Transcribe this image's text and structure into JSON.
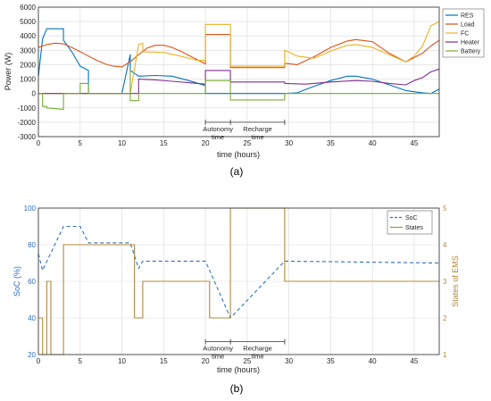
{
  "captions": {
    "a": "(a)",
    "b": "(b)"
  },
  "colors": {
    "res": "#0072BD",
    "load": "#D95319",
    "fc": "#EDB120",
    "heater": "#7E2F8E",
    "battery": "#77AC30",
    "soc": "#2E6FBF",
    "states": "#B08A3A",
    "grid": "#d9d9d9",
    "axis": "#262626"
  },
  "chart_data": [
    {
      "type": "line",
      "xlabel": "time (hours)",
      "ylabel": "Power (W)",
      "xlim": [
        0,
        48
      ],
      "ylim": [
        -3000,
        6000
      ],
      "xticks": [
        0,
        5,
        10,
        15,
        20,
        25,
        30,
        35,
        40,
        45
      ],
      "yticks": [
        -3000,
        -2000,
        -1000,
        0,
        1000,
        2000,
        3000,
        4000,
        5000,
        6000
      ],
      "grid": true,
      "legend_position": "top-right",
      "annotations": [
        {
          "text": "Autonomy\ntime",
          "x_from": 20,
          "x_to": 23
        },
        {
          "text": "Recharge\ntime",
          "x_from": 23,
          "x_to": 29.5
        }
      ],
      "series": [
        {
          "name": "RES",
          "color": "#0072BD",
          "x": [
            0,
            0.5,
            1,
            3,
            3,
            4,
            5,
            6,
            6,
            8,
            10,
            11,
            11,
            12,
            14,
            16,
            18,
            20,
            20,
            23,
            23,
            29.5,
            29.5,
            31,
            33,
            35,
            37,
            38,
            40,
            42,
            44,
            46,
            47,
            48
          ],
          "y": [
            1200,
            3800,
            4500,
            4500,
            3700,
            2900,
            1900,
            1600,
            0,
            0,
            0,
            2700,
            1600,
            1200,
            1250,
            1200,
            900,
            550,
            0,
            0,
            0,
            0,
            0,
            50,
            500,
            900,
            1200,
            1200,
            1000,
            600,
            200,
            50,
            0,
            300
          ]
        },
        {
          "name": "Load",
          "color": "#D95319",
          "x": [
            0,
            1,
            2,
            3,
            4,
            5,
            6,
            7,
            8,
            9,
            10,
            11,
            12,
            13,
            14,
            15,
            16,
            17,
            18,
            19,
            20,
            20,
            23,
            23,
            29.5,
            29.5,
            31,
            33,
            35,
            37,
            38,
            40,
            42,
            44,
            46,
            47,
            48
          ],
          "y": [
            3200,
            3400,
            3500,
            3450,
            3200,
            2900,
            2600,
            2300,
            2050,
            1900,
            1850,
            2200,
            2700,
            3150,
            3350,
            3350,
            3200,
            2950,
            2650,
            2350,
            2050,
            4100,
            4100,
            1800,
            1800,
            2100,
            2000,
            2550,
            3200,
            3650,
            3750,
            3600,
            2800,
            2200,
            2800,
            3300,
            3700
          ]
        },
        {
          "name": "FC",
          "color": "#EDB120",
          "x": [
            0,
            3,
            3,
            6,
            6,
            11,
            11,
            12,
            12.5,
            12.5,
            15,
            17,
            19,
            20,
            20,
            23,
            23,
            29.5,
            29.5,
            31,
            33,
            35,
            37,
            38,
            40,
            42,
            44,
            45,
            46,
            47,
            48
          ],
          "y": [
            0,
            0,
            0,
            0,
            0,
            0,
            0,
            3400,
            3500,
            2900,
            2850,
            2600,
            2300,
            2300,
            4800,
            4800,
            1900,
            1900,
            3000,
            2600,
            2450,
            2950,
            3350,
            3400,
            3200,
            2700,
            2200,
            2600,
            3300,
            4700,
            5000
          ]
        },
        {
          "name": "Heater",
          "color": "#7E2F8E",
          "x": [
            0,
            3,
            6,
            10,
            11,
            11,
            12,
            12,
            14,
            16,
            18,
            20,
            20,
            23,
            23,
            29.5,
            29.5,
            32,
            35,
            38,
            40,
            42,
            44,
            45,
            46,
            47,
            48
          ],
          "y": [
            0,
            0,
            0,
            0,
            0,
            0,
            0,
            1000,
            950,
            850,
            750,
            650,
            1600,
            1600,
            800,
            800,
            700,
            650,
            800,
            900,
            850,
            700,
            600,
            900,
            1100,
            1500,
            1700
          ]
        },
        {
          "name": "Battery",
          "color": "#77AC30",
          "x": [
            0,
            0.5,
            0.5,
            1,
            1,
            3,
            3,
            3,
            3,
            5,
            5,
            6,
            6,
            11,
            11,
            11,
            12,
            12,
            12.5,
            12.5,
            20,
            20,
            23,
            23,
            29.5,
            29.5,
            48
          ],
          "y": [
            0,
            0,
            -900,
            -900,
            -1000,
            -1100,
            -1100,
            0,
            0,
            0,
            700,
            700,
            0,
            0,
            1700,
            -500,
            -500,
            0,
            0,
            0,
            0,
            900,
            900,
            -450,
            -450,
            0,
            0
          ]
        }
      ]
    },
    {
      "type": "line",
      "xlabel": "time (hours)",
      "ylabel": "SoC (%)",
      "y2label": "States of EMS",
      "xlim": [
        0,
        48
      ],
      "ylim": [
        20,
        100
      ],
      "y2lim": [
        1,
        5
      ],
      "xticks": [
        0,
        5,
        10,
        15,
        20,
        25,
        30,
        35,
        40,
        45
      ],
      "yticks": [
        20,
        40,
        60,
        80,
        100
      ],
      "y2ticks": [
        1,
        2,
        3,
        4,
        5
      ],
      "grid": true,
      "legend_position": "top-right",
      "annotations": [
        {
          "text": "Autonomy\ntime",
          "x_from": 20,
          "x_to": 23
        },
        {
          "text": "Recharge\ntime",
          "x_from": 23,
          "x_to": 29.5
        }
      ],
      "series": [
        {
          "name": "SoC",
          "axis": "left",
          "style": "dashed",
          "color": "#2E6FBF",
          "x": [
            0,
            0.5,
            3,
            5,
            6,
            11,
            12,
            12.5,
            20,
            20.5,
            23,
            29.5,
            48
          ],
          "y": [
            75,
            66,
            90,
            90,
            81,
            81,
            67,
            71,
            71,
            66,
            40,
            71,
            70
          ]
        },
        {
          "name": "States",
          "axis": "right",
          "style": "solid",
          "color": "#B08A3A",
          "x": [
            0,
            0.5,
            0.5,
            1,
            1,
            1.5,
            1.5,
            3,
            3,
            11.5,
            11.5,
            12.5,
            12.5,
            20.5,
            20.5,
            23,
            23,
            29.5,
            29.5,
            48
          ],
          "y": [
            2,
            2,
            1,
            1,
            3,
            3,
            1,
            1,
            4,
            4,
            2,
            2,
            3,
            3,
            2,
            2,
            5,
            5,
            3,
            3
          ]
        }
      ]
    }
  ]
}
